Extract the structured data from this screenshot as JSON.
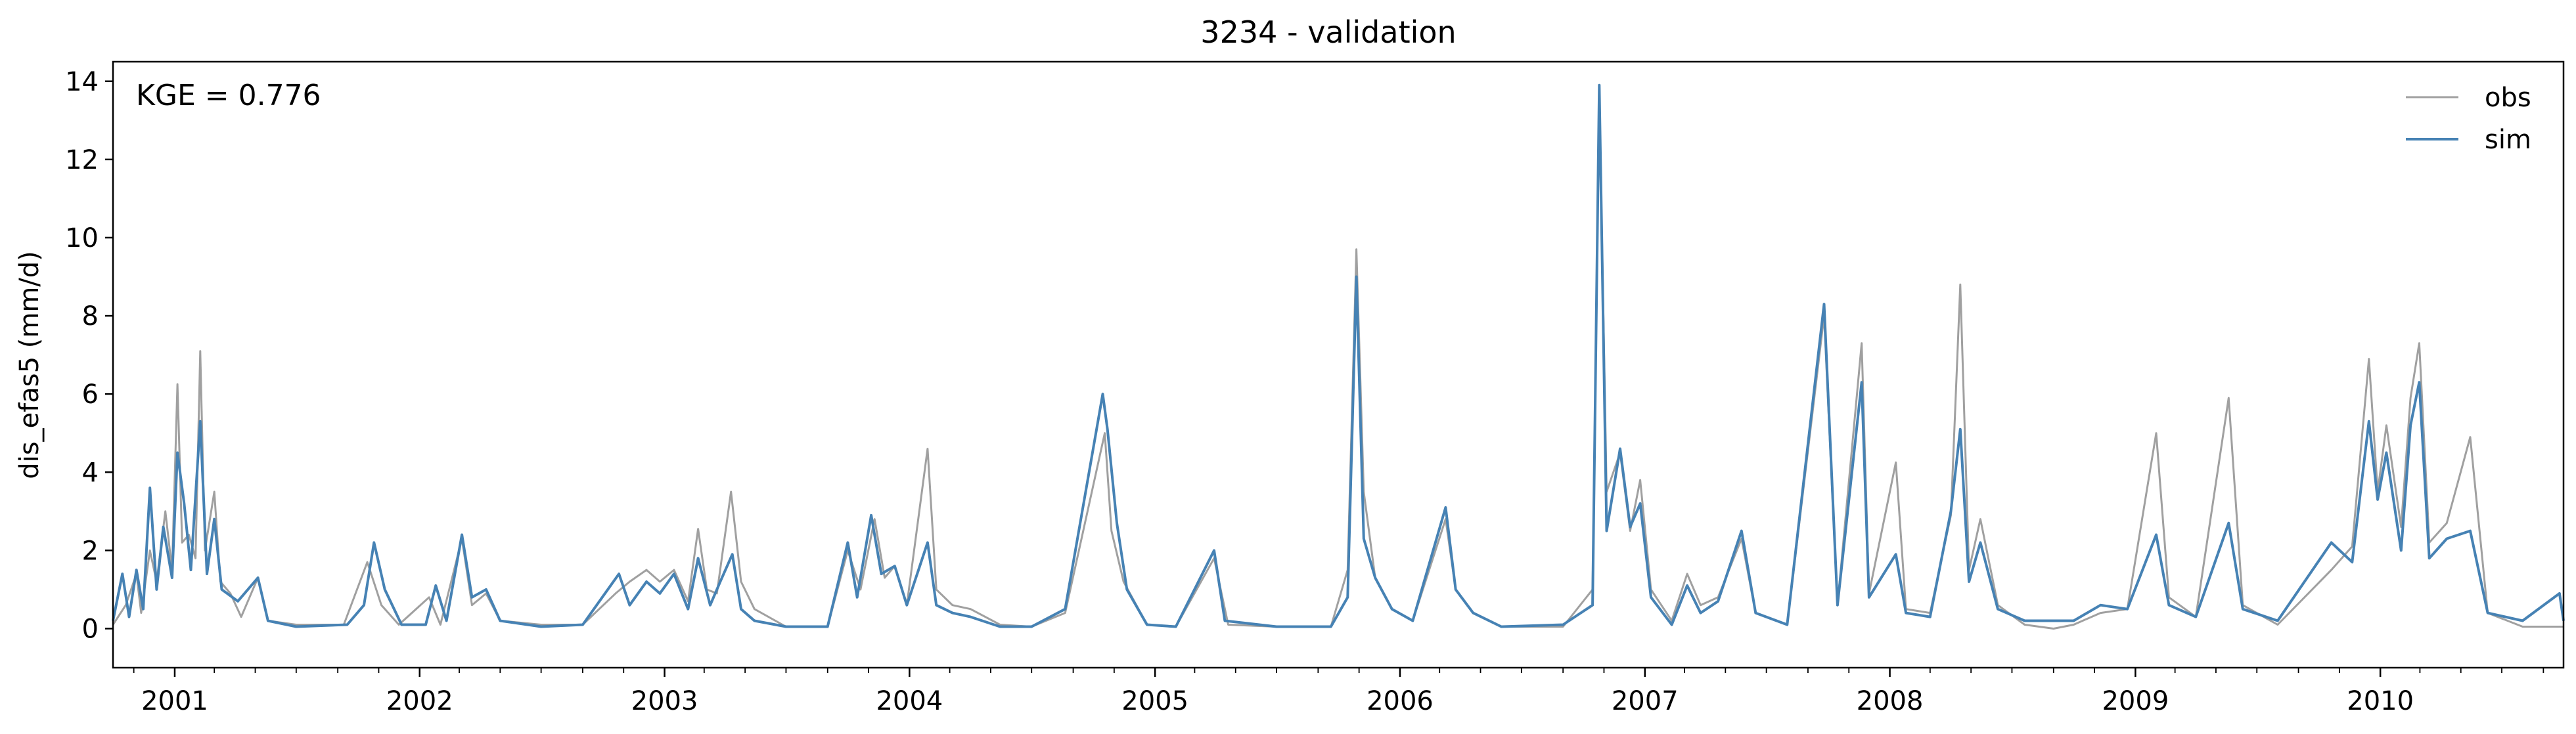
{
  "chart_data": {
    "type": "line",
    "title": "3234 - validation",
    "ylabel": "dis_efas5 (mm/d)",
    "xlim": [
      "2000-10-01",
      "2010-10-01"
    ],
    "ylim": [
      -1,
      14.5
    ],
    "yticks": [
      0,
      2,
      4,
      6,
      8,
      10,
      12,
      14
    ],
    "xticks": [
      "2001",
      "2002",
      "2003",
      "2004",
      "2005",
      "2006",
      "2007",
      "2008",
      "2009",
      "2010"
    ],
    "grid": false,
    "legend_position": "top-right",
    "annotation": "KGE = 0.776",
    "series": [
      {
        "name": "obs",
        "color": "#a0a0a0",
        "points": [
          [
            "2000-10-01",
            0.1
          ],
          [
            "2000-10-20",
            0.6
          ],
          [
            "2000-11-05",
            1.4
          ],
          [
            "2000-11-12",
            0.4
          ],
          [
            "2000-11-25",
            2.0
          ],
          [
            "2000-12-05",
            1.2
          ],
          [
            "2000-12-18",
            3.0
          ],
          [
            "2000-12-28",
            1.5
          ],
          [
            "2001-01-05",
            6.25
          ],
          [
            "2001-01-12",
            2.2
          ],
          [
            "2001-01-22",
            2.4
          ],
          [
            "2001-02-01",
            1.8
          ],
          [
            "2001-02-08",
            7.1
          ],
          [
            "2001-02-15",
            2.0
          ],
          [
            "2001-03-01",
            3.5
          ],
          [
            "2001-03-10",
            1.2
          ],
          [
            "2001-03-25",
            0.9
          ],
          [
            "2001-04-10",
            0.3
          ],
          [
            "2001-05-05",
            1.3
          ],
          [
            "2001-05-20",
            0.2
          ],
          [
            "2001-07-01",
            0.1
          ],
          [
            "2001-09-10",
            0.1
          ],
          [
            "2001-10-15",
            1.7
          ],
          [
            "2001-11-05",
            0.6
          ],
          [
            "2001-12-01",
            0.1
          ],
          [
            "2002-01-15",
            0.8
          ],
          [
            "2002-02-01",
            0.1
          ],
          [
            "2002-03-05",
            2.3
          ],
          [
            "2002-03-20",
            0.6
          ],
          [
            "2002-04-10",
            0.9
          ],
          [
            "2002-05-01",
            0.2
          ],
          [
            "2002-07-01",
            0.1
          ],
          [
            "2002-09-01",
            0.1
          ],
          [
            "2002-10-20",
            0.9
          ],
          [
            "2002-11-10",
            1.2
          ],
          [
            "2002-12-05",
            1.5
          ],
          [
            "2002-12-25",
            1.2
          ],
          [
            "2003-01-15",
            1.5
          ],
          [
            "2003-02-05",
            0.7
          ],
          [
            "2003-02-20",
            2.55
          ],
          [
            "2003-03-05",
            1.0
          ],
          [
            "2003-03-20",
            0.9
          ],
          [
            "2003-04-10",
            3.5
          ],
          [
            "2003-04-25",
            1.2
          ],
          [
            "2003-05-15",
            0.5
          ],
          [
            "2003-07-01",
            0.05
          ],
          [
            "2003-09-01",
            0.05
          ],
          [
            "2003-10-01",
            2.0
          ],
          [
            "2003-10-20",
            1.0
          ],
          [
            "2003-11-10",
            2.8
          ],
          [
            "2003-11-25",
            1.3
          ],
          [
            "2003-12-10",
            1.6
          ],
          [
            "2003-12-28",
            0.6
          ],
          [
            "2004-01-28",
            4.6
          ],
          [
            "2004-02-10",
            1.0
          ],
          [
            "2004-03-05",
            0.6
          ],
          [
            "2004-04-01",
            0.5
          ],
          [
            "2004-05-15",
            0.1
          ],
          [
            "2004-07-01",
            0.05
          ],
          [
            "2004-08-20",
            0.4
          ],
          [
            "2004-10-18",
            5.0
          ],
          [
            "2004-10-28",
            2.5
          ],
          [
            "2004-11-15",
            1.2
          ],
          [
            "2004-12-20",
            0.1
          ],
          [
            "2005-02-01",
            0.05
          ],
          [
            "2005-03-30",
            1.8
          ],
          [
            "2005-04-20",
            0.1
          ],
          [
            "2005-07-01",
            0.05
          ],
          [
            "2005-09-20",
            0.05
          ],
          [
            "2005-10-15",
            1.5
          ],
          [
            "2005-10-28",
            9.7
          ],
          [
            "2005-11-08",
            3.5
          ],
          [
            "2005-11-25",
            1.3
          ],
          [
            "2005-12-20",
            0.5
          ],
          [
            "2006-01-20",
            0.2
          ],
          [
            "2006-03-10",
            2.8
          ],
          [
            "2006-03-25",
            1.0
          ],
          [
            "2006-04-20",
            0.4
          ],
          [
            "2006-06-01",
            0.05
          ],
          [
            "2006-09-01",
            0.05
          ],
          [
            "2006-10-15",
            1.0
          ],
          [
            "2006-10-25",
            13.7
          ],
          [
            "2006-11-05",
            3.5
          ],
          [
            "2006-11-25",
            4.5
          ],
          [
            "2006-12-10",
            2.5
          ],
          [
            "2006-12-25",
            3.8
          ],
          [
            "2007-01-10",
            1.0
          ],
          [
            "2007-02-10",
            0.2
          ],
          [
            "2007-03-05",
            1.4
          ],
          [
            "2007-03-25",
            0.6
          ],
          [
            "2007-04-20",
            0.8
          ],
          [
            "2007-05-25",
            2.3
          ],
          [
            "2007-06-15",
            0.4
          ],
          [
            "2007-08-01",
            0.1
          ],
          [
            "2007-09-25",
            8.0
          ],
          [
            "2007-10-15",
            0.6
          ],
          [
            "2007-11-20",
            7.3
          ],
          [
            "2007-12-01",
            0.9
          ],
          [
            "2008-01-10",
            4.25
          ],
          [
            "2008-01-25",
            0.5
          ],
          [
            "2008-03-01",
            0.4
          ],
          [
            "2008-04-01",
            2.9
          ],
          [
            "2008-04-15",
            8.8
          ],
          [
            "2008-04-28",
            1.5
          ],
          [
            "2008-05-15",
            2.8
          ],
          [
            "2008-06-10",
            0.6
          ],
          [
            "2008-07-20",
            0.1
          ],
          [
            "2008-09-01",
            0.0
          ],
          [
            "2008-10-01",
            0.1
          ],
          [
            "2008-11-10",
            0.4
          ],
          [
            "2008-12-20",
            0.5
          ],
          [
            "2009-02-01",
            5.0
          ],
          [
            "2009-02-20",
            0.8
          ],
          [
            "2009-04-01",
            0.3
          ],
          [
            "2009-05-20",
            5.9
          ],
          [
            "2009-06-10",
            0.6
          ],
          [
            "2009-08-01",
            0.1
          ],
          [
            "2009-10-20",
            1.5
          ],
          [
            "2009-11-20",
            2.1
          ],
          [
            "2009-12-15",
            6.9
          ],
          [
            "2009-12-28",
            3.5
          ],
          [
            "2010-01-10",
            5.2
          ],
          [
            "2010-02-01",
            2.6
          ],
          [
            "2010-02-15",
            5.9
          ],
          [
            "2010-02-28",
            7.3
          ],
          [
            "2010-03-15",
            2.2
          ],
          [
            "2010-04-10",
            2.7
          ],
          [
            "2010-05-15",
            4.9
          ],
          [
            "2010-06-10",
            0.4
          ],
          [
            "2010-08-01",
            0.05
          ],
          [
            "2010-10-01",
            0.05
          ]
        ]
      },
      {
        "name": "sim",
        "color": "#4682b4",
        "points": [
          [
            "2000-10-01",
            0.2
          ],
          [
            "2000-10-15",
            1.4
          ],
          [
            "2000-10-25",
            0.3
          ],
          [
            "2000-11-05",
            1.5
          ],
          [
            "2000-11-15",
            0.5
          ],
          [
            "2000-11-25",
            3.6
          ],
          [
            "2000-12-05",
            1.0
          ],
          [
            "2000-12-15",
            2.6
          ],
          [
            "2000-12-28",
            1.3
          ],
          [
            "2001-01-05",
            4.5
          ],
          [
            "2001-01-15",
            3.2
          ],
          [
            "2001-01-25",
            1.5
          ],
          [
            "2001-02-08",
            5.3
          ],
          [
            "2001-02-18",
            1.4
          ],
          [
            "2001-03-01",
            2.8
          ],
          [
            "2001-03-12",
            1.0
          ],
          [
            "2001-04-05",
            0.7
          ],
          [
            "2001-05-05",
            1.3
          ],
          [
            "2001-05-20",
            0.2
          ],
          [
            "2001-07-01",
            0.05
          ],
          [
            "2001-09-15",
            0.1
          ],
          [
            "2001-10-10",
            0.6
          ],
          [
            "2001-10-25",
            2.2
          ],
          [
            "2001-11-10",
            1.0
          ],
          [
            "2001-12-05",
            0.1
          ],
          [
            "2002-01-10",
            0.1
          ],
          [
            "2002-01-25",
            1.1
          ],
          [
            "2002-02-10",
            0.2
          ],
          [
            "2002-03-05",
            2.4
          ],
          [
            "2002-03-20",
            0.8
          ],
          [
            "2002-04-10",
            1.0
          ],
          [
            "2002-05-01",
            0.2
          ],
          [
            "2002-07-01",
            0.05
          ],
          [
            "2002-09-01",
            0.1
          ],
          [
            "2002-10-25",
            1.4
          ],
          [
            "2002-11-10",
            0.6
          ],
          [
            "2002-12-05",
            1.2
          ],
          [
            "2002-12-25",
            0.9
          ],
          [
            "2003-01-15",
            1.4
          ],
          [
            "2003-02-05",
            0.5
          ],
          [
            "2003-02-20",
            1.8
          ],
          [
            "2003-03-10",
            0.6
          ],
          [
            "2003-03-25",
            1.2
          ],
          [
            "2003-04-12",
            1.9
          ],
          [
            "2003-04-25",
            0.5
          ],
          [
            "2003-05-15",
            0.2
          ],
          [
            "2003-07-01",
            0.05
          ],
          [
            "2003-09-01",
            0.05
          ],
          [
            "2003-10-01",
            2.2
          ],
          [
            "2003-10-15",
            0.8
          ],
          [
            "2003-11-05",
            2.9
          ],
          [
            "2003-11-20",
            1.4
          ],
          [
            "2003-12-10",
            1.6
          ],
          [
            "2003-12-28",
            0.6
          ],
          [
            "2004-01-28",
            2.2
          ],
          [
            "2004-02-10",
            0.6
          ],
          [
            "2004-03-05",
            0.4
          ],
          [
            "2004-04-01",
            0.3
          ],
          [
            "2004-05-15",
            0.05
          ],
          [
            "2004-07-01",
            0.05
          ],
          [
            "2004-08-20",
            0.5
          ],
          [
            "2004-10-15",
            6.0
          ],
          [
            "2004-10-22",
            5.1
          ],
          [
            "2004-11-05",
            2.7
          ],
          [
            "2004-11-20",
            1.0
          ],
          [
            "2004-12-20",
            0.1
          ],
          [
            "2005-02-01",
            0.05
          ],
          [
            "2005-03-30",
            2.0
          ],
          [
            "2005-04-15",
            0.2
          ],
          [
            "2005-07-01",
            0.05
          ],
          [
            "2005-09-20",
            0.05
          ],
          [
            "2005-10-15",
            0.8
          ],
          [
            "2005-10-28",
            9.0
          ],
          [
            "2005-11-08",
            2.3
          ],
          [
            "2005-11-25",
            1.3
          ],
          [
            "2005-12-20",
            0.5
          ],
          [
            "2006-01-20",
            0.2
          ],
          [
            "2006-03-10",
            3.1
          ],
          [
            "2006-03-25",
            1.0
          ],
          [
            "2006-04-20",
            0.4
          ],
          [
            "2006-06-01",
            0.05
          ],
          [
            "2006-09-01",
            0.1
          ],
          [
            "2006-10-15",
            0.6
          ],
          [
            "2006-10-25",
            13.9
          ],
          [
            "2006-11-05",
            2.5
          ],
          [
            "2006-11-25",
            4.6
          ],
          [
            "2006-12-10",
            2.6
          ],
          [
            "2006-12-25",
            3.2
          ],
          [
            "2007-01-10",
            0.8
          ],
          [
            "2007-02-10",
            0.1
          ],
          [
            "2007-03-05",
            1.1
          ],
          [
            "2007-03-25",
            0.4
          ],
          [
            "2007-04-20",
            0.7
          ],
          [
            "2007-05-25",
            2.5
          ],
          [
            "2007-06-15",
            0.4
          ],
          [
            "2007-08-01",
            0.1
          ],
          [
            "2007-09-25",
            8.3
          ],
          [
            "2007-10-15",
            0.6
          ],
          [
            "2007-11-20",
            6.3
          ],
          [
            "2007-12-01",
            0.8
          ],
          [
            "2008-01-10",
            1.9
          ],
          [
            "2008-01-25",
            0.4
          ],
          [
            "2008-03-01",
            0.3
          ],
          [
            "2008-04-01",
            3.0
          ],
          [
            "2008-04-15",
            5.1
          ],
          [
            "2008-04-28",
            1.2
          ],
          [
            "2008-05-15",
            2.2
          ],
          [
            "2008-06-10",
            0.5
          ],
          [
            "2008-07-20",
            0.2
          ],
          [
            "2008-09-01",
            0.2
          ],
          [
            "2008-10-01",
            0.2
          ],
          [
            "2008-11-10",
            0.6
          ],
          [
            "2008-12-20",
            0.5
          ],
          [
            "2009-02-01",
            2.4
          ],
          [
            "2009-02-20",
            0.6
          ],
          [
            "2009-04-01",
            0.3
          ],
          [
            "2009-05-20",
            2.7
          ],
          [
            "2009-06-10",
            0.5
          ],
          [
            "2009-08-01",
            0.2
          ],
          [
            "2009-10-20",
            2.2
          ],
          [
            "2009-11-20",
            1.7
          ],
          [
            "2009-12-15",
            5.3
          ],
          [
            "2009-12-28",
            3.3
          ],
          [
            "2010-01-10",
            4.5
          ],
          [
            "2010-02-01",
            2.0
          ],
          [
            "2010-02-15",
            5.2
          ],
          [
            "2010-02-28",
            6.3
          ],
          [
            "2010-03-15",
            1.8
          ],
          [
            "2010-04-10",
            2.3
          ],
          [
            "2010-05-15",
            2.5
          ],
          [
            "2010-06-10",
            0.4
          ],
          [
            "2010-08-01",
            0.2
          ],
          [
            "2010-09-25",
            0.9
          ],
          [
            "2010-10-01",
            0.2
          ]
        ]
      }
    ]
  }
}
